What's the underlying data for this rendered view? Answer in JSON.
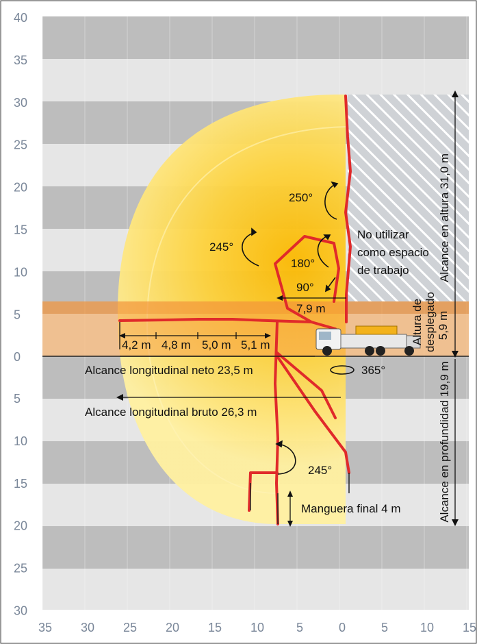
{
  "colors": {
    "band_dark": "#bdbdbd",
    "band_light": "#e6e6e6",
    "reach_yellow": "#fdd23c",
    "boom_red": "#e02a2a",
    "unfold_band": "#f5a04a",
    "tick_text": "#7a8799"
  },
  "axes": {
    "y_ticks_upper": [
      "40",
      "35",
      "30",
      "25",
      "20",
      "15",
      "10",
      "5",
      "0"
    ],
    "y_ticks_lower": [
      "5",
      "10",
      "15",
      "20",
      "25",
      "30"
    ],
    "x_ticks": [
      "35",
      "30",
      "25",
      "20",
      "15",
      "10",
      "5",
      "0",
      "5",
      "10",
      "15"
    ]
  },
  "labels": {
    "angle_250": "250°",
    "angle_245_top": "245°",
    "angle_180": "180°",
    "angle_90": "90°",
    "dim_7_9": "7,9 m",
    "no_use_1": "No utilizar",
    "no_use_2": "como espacio",
    "no_use_3": "de trabajo",
    "height_reach": "Alcance en altura 31,0 m",
    "unfold_1": "Altura de",
    "unfold_2": "desplegado",
    "unfold_3": "5,9 m",
    "seg_1": "4,2 m",
    "seg_2": "4,8 m",
    "seg_3": "5,0 m",
    "seg_4": "5,1 m",
    "net_reach": "Alcance longitudinal neto 23,5 m",
    "rotation": "365°",
    "gross_reach": "Alcance longitudinal bruto 26,3 m",
    "depth_reach": "Alcance en profundidad 19,9 m",
    "angle_245_bottom": "245°",
    "hose": "Manguera final 4 m"
  }
}
